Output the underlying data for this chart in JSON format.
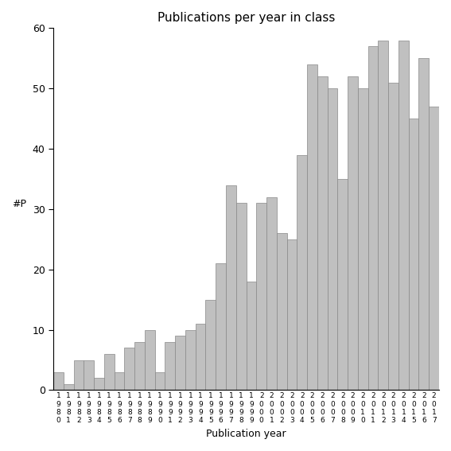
{
  "title": "Publications per year in class",
  "xlabel": "Publication year",
  "ylabel": "#P",
  "bar_color": "#c0c0c0",
  "bar_edge_color": "#888888",
  "years": [
    1980,
    1981,
    1982,
    1983,
    1984,
    1985,
    1986,
    1987,
    1988,
    1989,
    1990,
    1991,
    1992,
    1993,
    1994,
    1995,
    1996,
    1997,
    1998,
    1999,
    2000,
    2001,
    2002,
    2003,
    2004,
    2005,
    2006,
    2007,
    2008,
    2009,
    2010,
    2011,
    2012,
    2013,
    2014,
    2015,
    2016,
    2017
  ],
  "values": [
    3,
    1,
    5,
    5,
    2,
    6,
    3,
    7,
    8,
    10,
    3,
    8,
    9,
    10,
    11,
    15,
    21,
    34,
    31,
    18,
    31,
    32,
    26,
    25,
    39,
    54,
    52,
    50,
    35,
    52,
    50,
    57,
    58,
    51,
    58,
    45,
    55,
    47
  ],
  "ylim": [
    0,
    60
  ],
  "yticks": [
    0,
    10,
    20,
    30,
    40,
    50,
    60
  ],
  "background_color": "#ffffff"
}
